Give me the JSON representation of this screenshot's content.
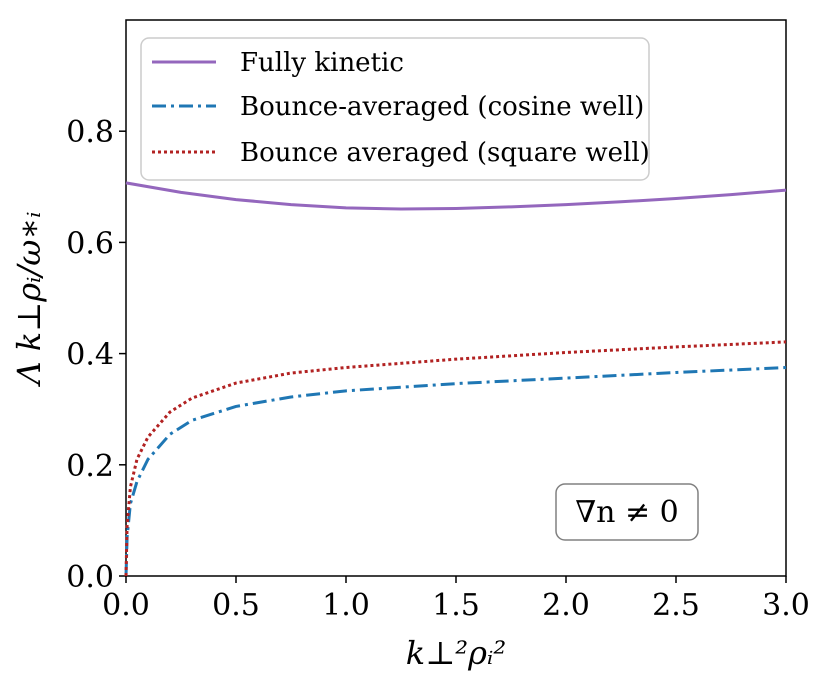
{
  "chart_data": {
    "type": "line",
    "title": "",
    "xlabel": "k⊥²ρᵢ²",
    "ylabel": "Λ k⊥ρᵢ/ω∗ᵢ",
    "xlim": [
      0.0,
      3.0
    ],
    "ylim": [
      0.0,
      1.0
    ],
    "x_ticks": [
      "0.0",
      "0.5",
      "1.0",
      "1.5",
      "2.0",
      "2.5",
      "3.0"
    ],
    "x_tick_values": [
      0.0,
      0.5,
      1.0,
      1.5,
      2.0,
      2.5,
      3.0
    ],
    "y_ticks": [
      "0.0",
      "0.2",
      "0.4",
      "0.6",
      "0.8"
    ],
    "y_tick_values": [
      0.0,
      0.2,
      0.4,
      0.6,
      0.8
    ],
    "grid": false,
    "legend_position": "top-left",
    "annotation": "∇n ≠ 0",
    "series": [
      {
        "name": "Fully kinetic",
        "color": "#9467bd",
        "style": "solid",
        "x": [
          0.0,
          0.25,
          0.5,
          0.75,
          1.0,
          1.25,
          1.5,
          1.75,
          2.0,
          2.25,
          2.5,
          2.75,
          3.0
        ],
        "y": [
          0.707,
          0.69,
          0.677,
          0.668,
          0.662,
          0.66,
          0.661,
          0.664,
          0.668,
          0.673,
          0.679,
          0.686,
          0.694
        ]
      },
      {
        "name": "Bounce-averaged (cosine well)",
        "color": "#1f77b4",
        "style": "dashdot",
        "x": [
          0.0,
          0.005,
          0.02,
          0.05,
          0.1,
          0.2,
          0.3,
          0.5,
          0.75,
          1.0,
          1.5,
          2.0,
          2.5,
          3.0
        ],
        "y": [
          0.0,
          0.07,
          0.13,
          0.17,
          0.21,
          0.255,
          0.28,
          0.305,
          0.322,
          0.333,
          0.346,
          0.356,
          0.366,
          0.375
        ]
      },
      {
        "name": "Bounce averaged (square well)",
        "color": "#b22222",
        "style": "dotted",
        "x": [
          0.0,
          0.005,
          0.02,
          0.05,
          0.1,
          0.2,
          0.3,
          0.5,
          0.75,
          1.0,
          1.5,
          2.0,
          2.5,
          3.0
        ],
        "y": [
          0.0,
          0.09,
          0.16,
          0.21,
          0.25,
          0.295,
          0.32,
          0.347,
          0.365,
          0.375,
          0.39,
          0.402,
          0.412,
          0.421
        ]
      }
    ]
  }
}
